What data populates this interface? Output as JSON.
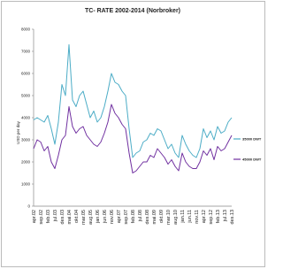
{
  "chart_data": {
    "type": "line",
    "title": "TC- RATE 2002-2014 (Norbroker)",
    "y_label": "USD per day",
    "categories": [
      "apr.02",
      null,
      "sep.02",
      null,
      "feb.03",
      null,
      "jul.03",
      null,
      "des.03",
      null,
      "mai.04",
      null,
      "okt.04",
      null,
      "mar.05",
      null,
      "aug.05",
      null,
      "jan.06",
      null,
      "jun.06",
      null,
      "nov.06",
      null,
      "apr.07",
      null,
      "sep.07",
      null,
      "feb.08",
      null,
      "jul.08",
      null,
      "des.08",
      null,
      "mai.09",
      null,
      "okt.09",
      null,
      "mar.10",
      null,
      "aug.10",
      null,
      "jan.11",
      null,
      "jun.11",
      null,
      "nov.11",
      null,
      "apr.12",
      null,
      "sep.12",
      null,
      "feb.13",
      null,
      "jul.13",
      null,
      "des.13"
    ],
    "series": [
      {
        "name": "35000 DWT",
        "color": "#4bacc6",
        "values": [
          3900,
          4000,
          3900,
          3800,
          4100,
          3500,
          2800,
          3800,
          5500,
          5000,
          7300,
          4800,
          4500,
          5000,
          5200,
          4600,
          4000,
          4300,
          3800,
          4000,
          4500,
          5200,
          6000,
          5600,
          5500,
          5200,
          5000,
          3500,
          2200,
          2400,
          2500,
          2900,
          3000,
          3300,
          3200,
          3500,
          3400,
          3000,
          2600,
          2800,
          2400,
          2200,
          3200,
          2800,
          2500,
          2300,
          2200,
          2600,
          3500,
          3100,
          3400,
          3000,
          3600,
          3300,
          3400,
          3800,
          4000
        ]
      },
      {
        "name": "45000 DWT",
        "color": "#7030a0",
        "values": [
          2600,
          3000,
          2900,
          2500,
          2700,
          2000,
          1700,
          2300,
          3000,
          3200,
          4500,
          3600,
          3300,
          3500,
          3600,
          3200,
          3000,
          2800,
          2700,
          2900,
          3300,
          3800,
          4600,
          4200,
          4000,
          3700,
          3500,
          2400,
          1500,
          1600,
          1800,
          2000,
          2000,
          2300,
          2200,
          2600,
          2400,
          2200,
          1900,
          2100,
          1800,
          1600,
          2400,
          2000,
          1800,
          1700,
          1700,
          2000,
          2500,
          2300,
          2600,
          2100,
          2700,
          2500,
          2600,
          2900,
          3200
        ]
      }
    ],
    "ylim": [
      0,
      8000
    ],
    "yticks": [
      0,
      1000,
      2000,
      3000,
      4000,
      5000,
      6000,
      7000,
      8000
    ],
    "grid": false
  }
}
